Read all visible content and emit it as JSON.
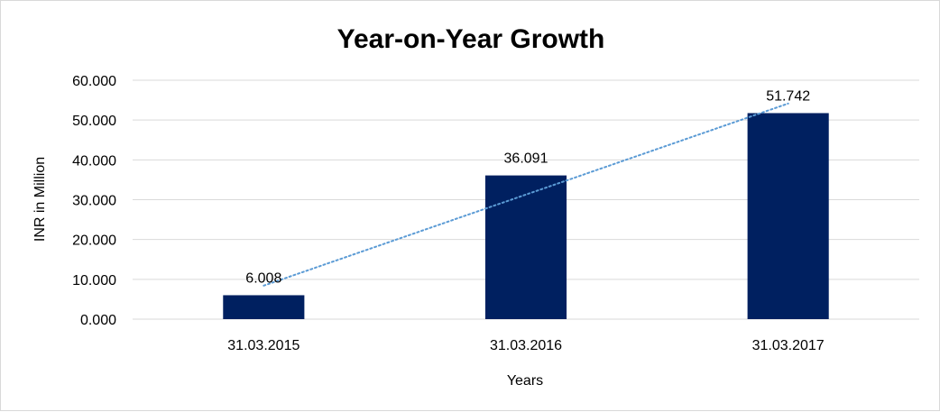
{
  "chart_data": {
    "type": "bar",
    "title": "Year-on-Year Growth",
    "xlabel": "Years",
    "ylabel": "INR in Million",
    "categories": [
      "31.03.2015",
      "31.03.2016",
      "31.03.2017"
    ],
    "values": [
      6.008,
      36.091,
      51.742
    ],
    "data_labels": [
      "6.008",
      "36.091",
      "51.742"
    ],
    "y_ticks": [
      0,
      10,
      20,
      30,
      40,
      50,
      60
    ],
    "y_tick_labels": [
      "0.000",
      "10.000",
      "20.000",
      "30.000",
      "40.000",
      "50.000",
      "60.000"
    ],
    "ylim": [
      0,
      60
    ],
    "grid": true,
    "legend": "none",
    "trendline": "linear",
    "colors": {
      "bar": "#002060",
      "trendline": "#5b9bd5",
      "grid": "#d9d9d9"
    }
  }
}
